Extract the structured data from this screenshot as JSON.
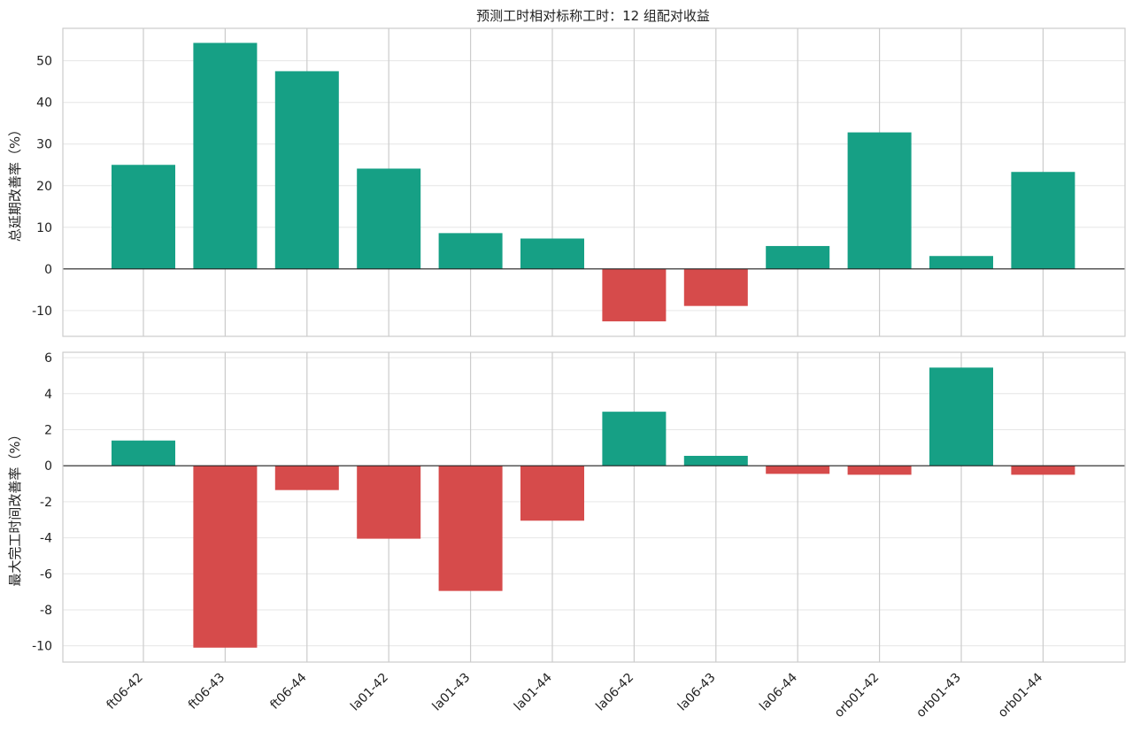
{
  "chart_data": {
    "type": "bar",
    "title": "预测工时相对标称工时：12 组配对收益",
    "categories": [
      "ft06-42",
      "ft06-43",
      "ft06-44",
      "la01-42",
      "la01-43",
      "la01-44",
      "la06-42",
      "la06-43",
      "la06-44",
      "orb01-42",
      "orb01-43",
      "orb01-44"
    ],
    "colors": {
      "positive": "#16a085",
      "negative": "#d64b4b",
      "zero_line": "#222222"
    },
    "panels": [
      {
        "ylabel": "总延期改善率（%）",
        "ylim": [
          -16.2,
          57.8
        ],
        "yticks": [
          -10,
          0,
          10,
          20,
          30,
          40,
          50
        ],
        "series": [
          {
            "values": [
              25.0,
              54.3,
              47.5,
              24.1,
              8.6,
              7.3,
              -12.6,
              -8.9,
              5.5,
              32.8,
              3.1,
              23.3
            ]
          }
        ]
      },
      {
        "ylabel": "最大完工时间改善率（%）",
        "ylim": [
          -10.9,
          6.3
        ],
        "yticks": [
          -10,
          -8,
          -6,
          -4,
          -2,
          0,
          2,
          4,
          6
        ],
        "series": [
          {
            "values": [
              1.4,
              -10.1,
              -1.35,
              -4.05,
              -6.95,
              -3.05,
              3.0,
              0.55,
              -0.45,
              -0.5,
              5.45,
              -0.5
            ]
          }
        ]
      }
    ],
    "grid": true
  }
}
